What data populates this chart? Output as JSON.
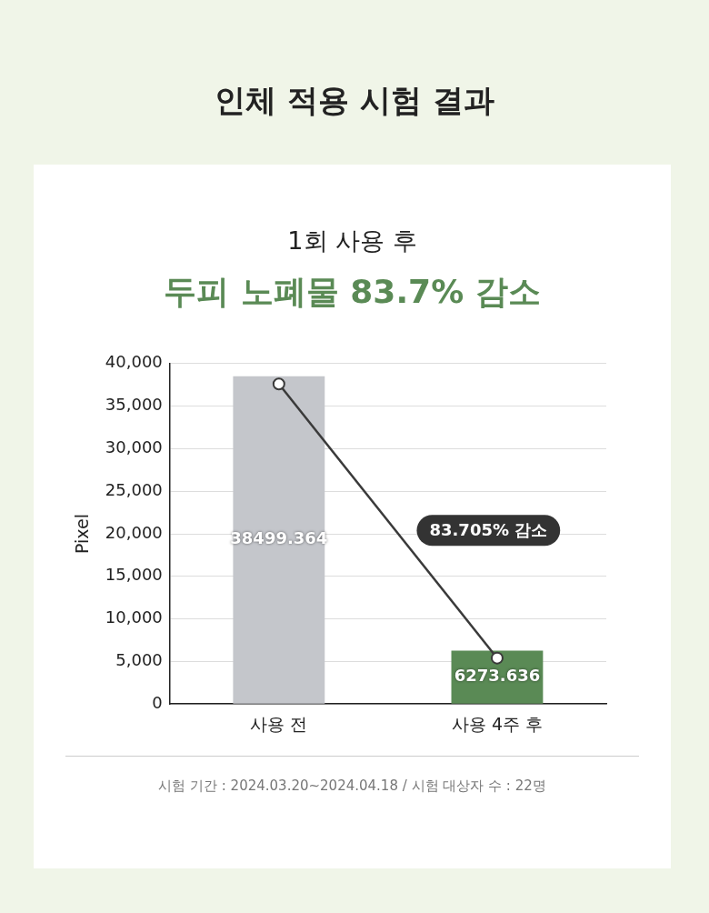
{
  "chart_data": {
    "type": "bar",
    "title": "인체 적용 시험 결과",
    "subtitle": "1회 사용 후",
    "ylabel": "Pixel",
    "categories": [
      "사용 전",
      "사용 4주 후"
    ],
    "series": [
      {
        "colors": [
          "#c4c6cb",
          "#5a8a55"
        ],
        "values": [
          38499.364,
          6273.636
        ],
        "value_labels": [
          "38499.364",
          "6273.636"
        ]
      },
      {
        "type": "line",
        "color": "#3a3a3a",
        "marker": "circle",
        "values": [
          37600,
          5400
        ]
      }
    ],
    "ylim": [
      0,
      40000
    ],
    "yticks": [
      {
        "value": 0,
        "label": "0"
      },
      {
        "value": 5000,
        "label": "5,000"
      },
      {
        "value": 10000,
        "label": "10,000"
      },
      {
        "value": 15000,
        "label": "15,000"
      },
      {
        "value": 20000,
        "label": "20,000"
      },
      {
        "value": 25000,
        "label": "25,000"
      },
      {
        "value": 30000,
        "label": "30,000"
      },
      {
        "value": 35000,
        "label": "35,000"
      },
      {
        "value": 40000,
        "label": "40,000"
      }
    ],
    "grid": "y",
    "legend": false,
    "annotations": [
      "두피 노폐물 83.7% 감소",
      "83.705% 감소",
      "시험 기간 : 2024.03.20~2024.04.18 / 시험 대상자 수 : 22명"
    ]
  }
}
